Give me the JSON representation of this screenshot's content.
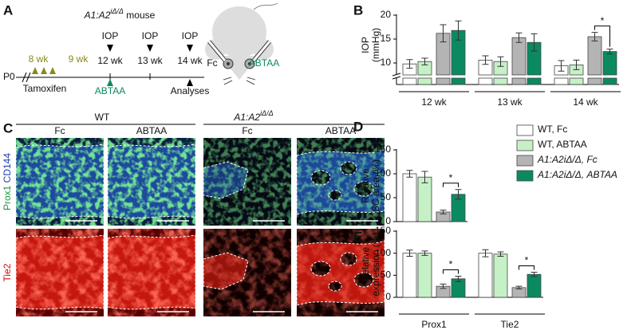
{
  "timeline": {
    "panel": "A",
    "genotype": "A1:A2",
    "genotype_sup": "iΔ/Δ",
    "suffix": " mouse",
    "start": "P0",
    "tamoxifen_weeks": [
      "8 wk",
      "9 wk"
    ],
    "tamoxifen": "Tamoxifen",
    "timepoints": [
      {
        "label": "IOP",
        "week": "12 wk"
      },
      {
        "label": "IOP",
        "week": "13 wk"
      },
      {
        "label": "IOP",
        "week": "14 wk"
      }
    ],
    "treatment": "ABTAA",
    "analyses": "Analyses",
    "eye_labels": [
      "Fc",
      "ABTAA"
    ]
  },
  "images": {
    "panel": "C",
    "group_wt": "WT",
    "group_mut": {
      "genotype": "A1:A2",
      "genotype_sup": "iΔ/Δ"
    },
    "columns": [
      "Fc",
      "ABTAA",
      "Fc",
      "ABTAA"
    ],
    "rows": [
      [
        "Prox1",
        "CD144"
      ],
      [
        "Tie2"
      ]
    ]
  },
  "chart_data": [
    {
      "type": "bar",
      "panel": "B",
      "y_label": [
        "IOP",
        "(mmHg)"
      ],
      "categories": [
        "12 wk",
        "13 wk",
        "14 wk"
      ],
      "series": [
        {
          "color": "#ffffff",
          "values": [
            9.8,
            10.6,
            9.4
          ],
          "errors": [
            0.9,
            0.9,
            1.1
          ]
        },
        {
          "color": "#c6f0c6",
          "values": [
            10.3,
            10.3,
            9.6
          ],
          "errors": [
            0.7,
            1.0,
            1.0
          ]
        },
        {
          "color": "#b4b4b4",
          "values": [
            16.2,
            15.3,
            15.5
          ],
          "errors": [
            1.8,
            1.0,
            0.9
          ]
        },
        {
          "color": "#0b8a62",
          "values": [
            16.8,
            14.3,
            12.4
          ],
          "errors": [
            2.0,
            1.8,
            0.5
          ]
        }
      ],
      "significance": [
        null,
        null,
        "*"
      ],
      "ylim": [
        7.5,
        20
      ],
      "yticks": [
        10,
        15,
        20
      ],
      "axis_break": true
    },
    {
      "type": "bar",
      "panel": "D",
      "y_label": [
        "Relative",
        "SC area (%)"
      ],
      "series": [
        {
          "name": "WT, Fc",
          "color": "#ffffff",
          "values": [
            100
          ],
          "errors": [
            7
          ]
        },
        {
          "name": "WT, ABTAA",
          "color": "#c6f0c6",
          "values": [
            93
          ],
          "errors": [
            12
          ]
        },
        {
          "name": "A1:A2iΔ/Δ, Fc",
          "color": "#b4b4b4",
          "values": [
            20
          ],
          "errors": [
            4
          ]
        },
        {
          "name": "A1:A2iΔ/Δ, ABTAA",
          "color": "#0b8a62",
          "values": [
            57
          ],
          "errors": [
            10
          ]
        }
      ],
      "significance": [
        "*"
      ],
      "ylim": [
        0,
        150
      ],
      "yticks": [
        0,
        50,
        100,
        150
      ],
      "legend": "right"
    },
    {
      "type": "bar",
      "panel": "E",
      "y_label": [
        "Relative",
        "expression (%)"
      ],
      "categories": [
        "Prox1",
        "Tie2"
      ],
      "series": [
        {
          "color": "#ffffff",
          "values": [
            100,
            100
          ],
          "errors": [
            7,
            8
          ]
        },
        {
          "color": "#c6f0c6",
          "values": [
            100,
            98
          ],
          "errors": [
            5,
            5
          ]
        },
        {
          "color": "#b4b4b4",
          "values": [
            25,
            22
          ],
          "errors": [
            5,
            3
          ]
        },
        {
          "color": "#0b8a62",
          "values": [
            42,
            52
          ],
          "errors": [
            6,
            5
          ]
        }
      ],
      "significance": [
        "*",
        "*"
      ],
      "ylim": [
        0,
        150
      ],
      "yticks": [
        0,
        50,
        100,
        150
      ]
    }
  ]
}
